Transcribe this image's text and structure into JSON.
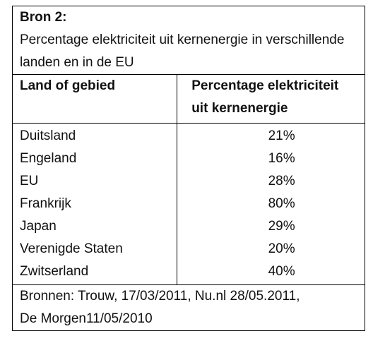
{
  "source": {
    "label": "Bron 2:",
    "caption": "Percentage elektriciteit uit kernenergie in verschillende landen en in de EU"
  },
  "table": {
    "headers": [
      "Land of gebied",
      "Percentage elektriciteit uit kernenergie"
    ],
    "rows": [
      [
        "Duitsland",
        "21%"
      ],
      [
        "Engeland",
        "16%"
      ],
      [
        "EU",
        "28%"
      ],
      [
        "Frankrijk",
        "80%"
      ],
      [
        "Japan",
        "29%"
      ],
      [
        "Verenigde Staten",
        "20%"
      ],
      [
        "Zwitserland",
        "40%"
      ]
    ]
  },
  "footer": "Bronnen: Trouw, 17/03/2011, Nu.nl 28/05.2011, De Morgen11/05/2010"
}
